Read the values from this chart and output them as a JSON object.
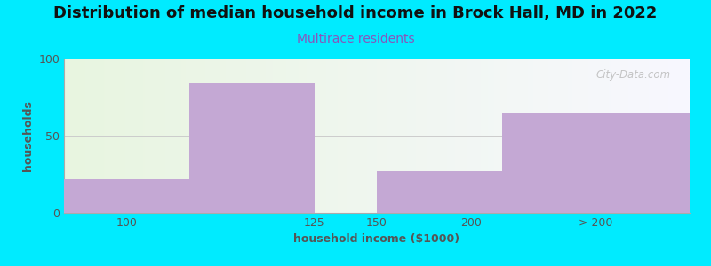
{
  "title": "Distribution of median household income in Brock Hall, MD in 2022",
  "subtitle": "Multirace residents",
  "xlabel": "household income ($1000)",
  "ylabel": "households",
  "bar_labels": [
    "100",
    "125",
    "150",
    "200",
    "> 200"
  ],
  "bar_lefts": [
    0,
    2,
    4,
    5,
    7
  ],
  "bar_widths": [
    2,
    2,
    1,
    2,
    3
  ],
  "values": [
    22,
    84,
    0,
    27,
    65
  ],
  "bar_color": "#c4a8d4",
  "ylim": [
    0,
    100
  ],
  "yticks": [
    0,
    50,
    100
  ],
  "xtick_positions": [
    1,
    4,
    5,
    6.5,
    8.5
  ],
  "background_outer": "#00ebff",
  "background_inner_left": "#e8f5e0",
  "background_inner_right": "#f5f5ff",
  "title_fontsize": 13,
  "subtitle_fontsize": 10,
  "subtitle_color": "#8855bb",
  "axis_label_fontsize": 9,
  "tick_fontsize": 9,
  "watermark_text": "City-Data.com",
  "xlim": [
    0,
    10
  ]
}
